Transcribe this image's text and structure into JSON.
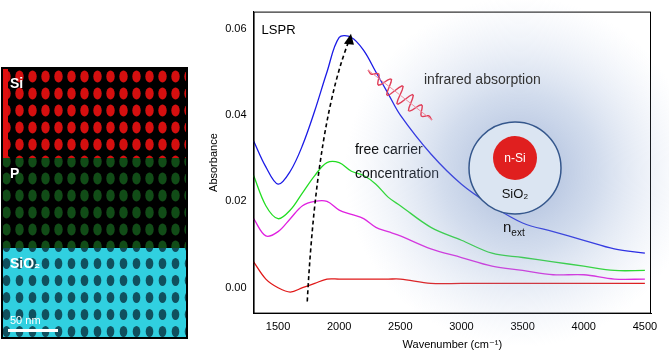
{
  "chart_data": {
    "type": "line",
    "x_label": "Wavenumber (cm⁻¹)",
    "y_label": "Absorbance",
    "x": [
      1300,
      1400,
      1500,
      1600,
      1700,
      1800,
      1900,
      2000,
      2100,
      2200,
      2300,
      2400,
      2500,
      2750,
      3000,
      3250,
      3500,
      3750,
      4000,
      4250,
      4500
    ],
    "series": [
      {
        "color": "#1a1ae6",
        "values": [
          0.034,
          0.028,
          0.024,
          0.027,
          0.033,
          0.041,
          0.05,
          0.058,
          0.058,
          0.055,
          0.05,
          0.045,
          0.04,
          0.031,
          0.024,
          0.019,
          0.015,
          0.013,
          0.011,
          0.009,
          0.008
        ]
      },
      {
        "color": "#22dd22",
        "values": [
          0.026,
          0.019,
          0.016,
          0.018,
          0.022,
          0.026,
          0.029,
          0.029,
          0.027,
          0.026,
          0.024,
          0.021,
          0.019,
          0.014,
          0.011,
          0.008,
          0.007,
          0.006,
          0.005,
          0.004,
          0.004
        ]
      },
      {
        "color": "#e020e0",
        "values": [
          0.016,
          0.012,
          0.013,
          0.016,
          0.019,
          0.02,
          0.02,
          0.018,
          0.017,
          0.016,
          0.014,
          0.013,
          0.012,
          0.009,
          0.007,
          0.005,
          0.004,
          0.003,
          0.003,
          0.002,
          0.002
        ]
      },
      {
        "color": "#e01818",
        "values": [
          0.006,
          0.002,
          0.0,
          -0.001,
          0.0,
          0.001,
          0.002,
          0.002,
          0.002,
          0.002,
          0.002,
          0.002,
          0.002,
          0.001,
          0.001,
          0.001,
          0.001,
          0.001,
          0.001,
          0.001,
          0.001
        ]
      }
    ],
    "xlim": [
      1300,
      4550
    ],
    "xticks": [
      1500,
      2000,
      2500,
      3000,
      3500,
      4000,
      4500
    ],
    "ylim": [
      -0.006,
      0.064
    ],
    "yticks": [
      {
        "value": 0,
        "label": "0.00"
      },
      {
        "value": 0.02,
        "label": "0.02"
      },
      {
        "value": 0.04,
        "label": "0.04"
      },
      {
        "value": 0.06,
        "label": "0.06"
      }
    ],
    "grid": false,
    "annotations": [
      "LSPR",
      "free carrier concentration"
    ]
  },
  "edx_maps": {
    "panels": [
      {
        "label": "Si",
        "color": "#e01010"
      },
      {
        "label": "P",
        "color": "#1f8a2a"
      },
      {
        "label": "SiO₂",
        "color": "#30d0e0"
      }
    ],
    "scale_bar": "50 nm"
  },
  "schematic": {
    "beam_label": "infrared absorption",
    "core": "n-Si",
    "shell": "SiO₂",
    "medium": {
      "base": "n",
      "sub": "ext"
    }
  }
}
